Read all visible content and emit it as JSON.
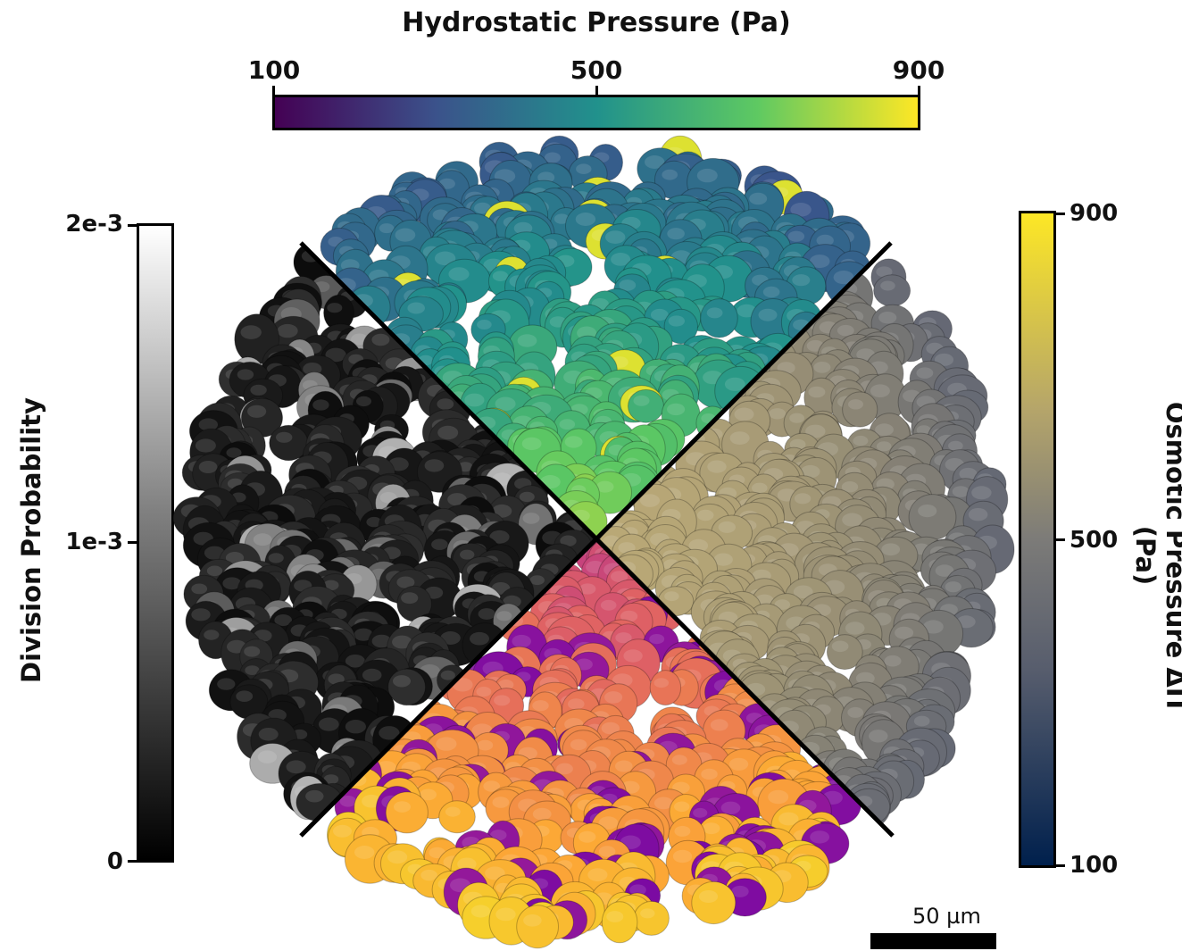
{
  "colorbars": {
    "top": {
      "title": "Hydrostatic Pressure (Pa)",
      "ticks": [
        "100",
        "500",
        "900"
      ],
      "colormap": "viridis"
    },
    "left": {
      "title": "Division Probability",
      "ticks": [
        "2e-3",
        "1e-3",
        "0"
      ],
      "colormap": "grayscale"
    },
    "right": {
      "title": "Osmotic Pressure ΔΠ (Pa)",
      "ticks": [
        "900",
        "500",
        "100"
      ],
      "colormap": "cividis"
    }
  },
  "scale_bar": {
    "label": "50 µm"
  },
  "colors": {
    "viridis": [
      "#440154",
      "#3b528b",
      "#21918c",
      "#5ec962",
      "#fde725"
    ],
    "plasma": [
      "#6a00a8",
      "#b12a90",
      "#e16462",
      "#fca636",
      "#f0f921"
    ],
    "cividis_dark": "#00204d",
    "cividis_light": "#fde725"
  }
}
